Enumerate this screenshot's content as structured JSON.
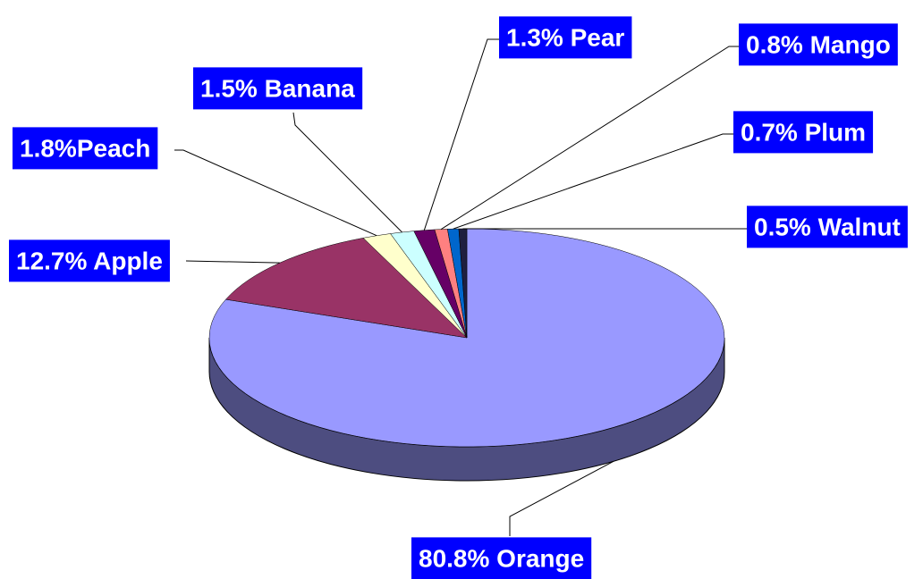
{
  "chart_data": {
    "type": "pie",
    "three_d": true,
    "values": [
      80.8,
      12.7,
      1.8,
      1.5,
      1.3,
      0.8,
      0.7,
      0.5
    ],
    "value_labels": [
      "80.8% Orange",
      "12.7% Apple",
      "1.8%Peach",
      "1.5%  Banana",
      "1.3% Pear",
      "0.8% Mango",
      "0.7% Plum",
      "0.5% Walnut"
    ],
    "colors": [
      "#9999ff",
      "#993366",
      "#ffffcc",
      "#ccffff",
      "#660066",
      "#ff8080",
      "#0066cc",
      "#1f1f3f"
    ],
    "label_background": "#0000ff"
  }
}
